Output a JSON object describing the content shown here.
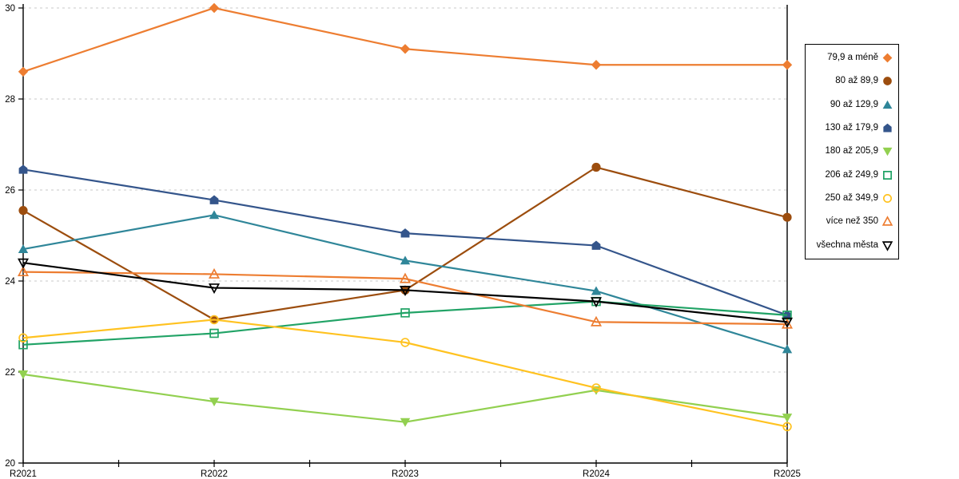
{
  "chart_data": {
    "type": "line",
    "title": "",
    "xlabel": "",
    "ylabel": "",
    "x_categories": [
      "R2021",
      "R2022",
      "R2023",
      "R2024",
      "R2025"
    ],
    "ylim": [
      20,
      30
    ],
    "yticks": [
      "20",
      "22",
      "24",
      "26",
      "28",
      "30"
    ],
    "grid": "horizontal-dashed",
    "grid_color": "#c9c9c9",
    "axis_color": "#000000",
    "legend_position": "top-right",
    "series": [
      {
        "name": "79,9 a méně",
        "color": "#ED7D31",
        "marker": "diamond",
        "filled": true,
        "values": [
          28.6,
          30.0,
          29.1,
          28.75,
          28.75
        ]
      },
      {
        "name": "80 až 89,9",
        "color": "#9C4D0E",
        "marker": "circle",
        "filled": true,
        "values": [
          25.55,
          23.15,
          23.8,
          26.5,
          25.4
        ]
      },
      {
        "name": "90 až 129,9",
        "color": "#2F8699",
        "marker": "triangle-up",
        "filled": true,
        "values": [
          24.7,
          25.45,
          24.45,
          23.78,
          22.5
        ]
      },
      {
        "name": "130 až 179,9",
        "color": "#34558B",
        "marker": "pentagon",
        "filled": true,
        "values": [
          26.45,
          25.78,
          25.05,
          24.78,
          23.25
        ]
      },
      {
        "name": "180 až 205,9",
        "color": "#92D050",
        "marker": "triangle-down",
        "filled": true,
        "values": [
          21.95,
          21.35,
          20.9,
          21.6,
          21.0
        ]
      },
      {
        "name": "206 až 249,9",
        "color": "#21A366",
        "marker": "square",
        "filled": false,
        "values": [
          22.6,
          22.85,
          23.3,
          23.55,
          23.25
        ]
      },
      {
        "name": "250 až 349,9",
        "color": "#FFC220",
        "marker": "circle",
        "filled": false,
        "values": [
          22.75,
          23.15,
          22.65,
          21.65,
          20.8
        ]
      },
      {
        "name": "více než 350",
        "color": "#ED7D31",
        "marker": "triangle-up",
        "filled": false,
        "values": [
          24.2,
          24.15,
          24.05,
          23.1,
          23.05
        ]
      },
      {
        "name": "všechna města",
        "color": "#000000",
        "marker": "triangle-down",
        "filled": false,
        "values": [
          24.4,
          23.85,
          23.8,
          23.55,
          23.1
        ]
      }
    ]
  }
}
